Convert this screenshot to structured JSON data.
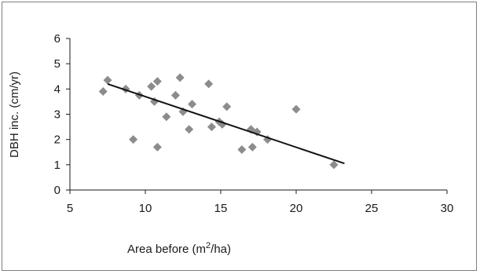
{
  "chart_data": {
    "type": "scatter",
    "title": "",
    "xlabel": "Area before (m2/ha)",
    "xlabel_parts": {
      "before": "Area before (m",
      "sup": "2",
      "after": "/ha)"
    },
    "ylabel": "DBH inc. (cm/yr)",
    "xlim": [
      5,
      30
    ],
    "ylim": [
      0,
      6
    ],
    "x_ticks": [
      5,
      10,
      15,
      20,
      25,
      30
    ],
    "y_ticks": [
      0,
      1,
      2,
      3,
      4,
      5,
      6
    ],
    "grid": false,
    "legend": "none",
    "marker": "diamond",
    "marker_color": "#8c8c8c",
    "line_color": "#111111",
    "points": [
      [
        7.2,
        3.9
      ],
      [
        7.5,
        4.35
      ],
      [
        8.7,
        4.0
      ],
      [
        9.2,
        2.0
      ],
      [
        9.6,
        3.75
      ],
      [
        10.4,
        4.1
      ],
      [
        10.6,
        3.5
      ],
      [
        10.8,
        4.3
      ],
      [
        10.8,
        1.7
      ],
      [
        11.4,
        2.9
      ],
      [
        12.0,
        3.75
      ],
      [
        12.3,
        4.45
      ],
      [
        12.5,
        3.1
      ],
      [
        12.9,
        2.4
      ],
      [
        13.1,
        3.4
      ],
      [
        14.2,
        4.2
      ],
      [
        14.4,
        2.5
      ],
      [
        14.9,
        2.7
      ],
      [
        15.1,
        2.6
      ],
      [
        15.4,
        3.3
      ],
      [
        16.4,
        1.6
      ],
      [
        17.0,
        2.4
      ],
      [
        17.1,
        1.7
      ],
      [
        17.4,
        2.3
      ],
      [
        18.1,
        2.0
      ],
      [
        20.0,
        3.2
      ],
      [
        22.5,
        1.0
      ]
    ],
    "trendline": {
      "x": [
        7.5,
        23.2
      ],
      "y": [
        4.2,
        1.05
      ]
    }
  }
}
